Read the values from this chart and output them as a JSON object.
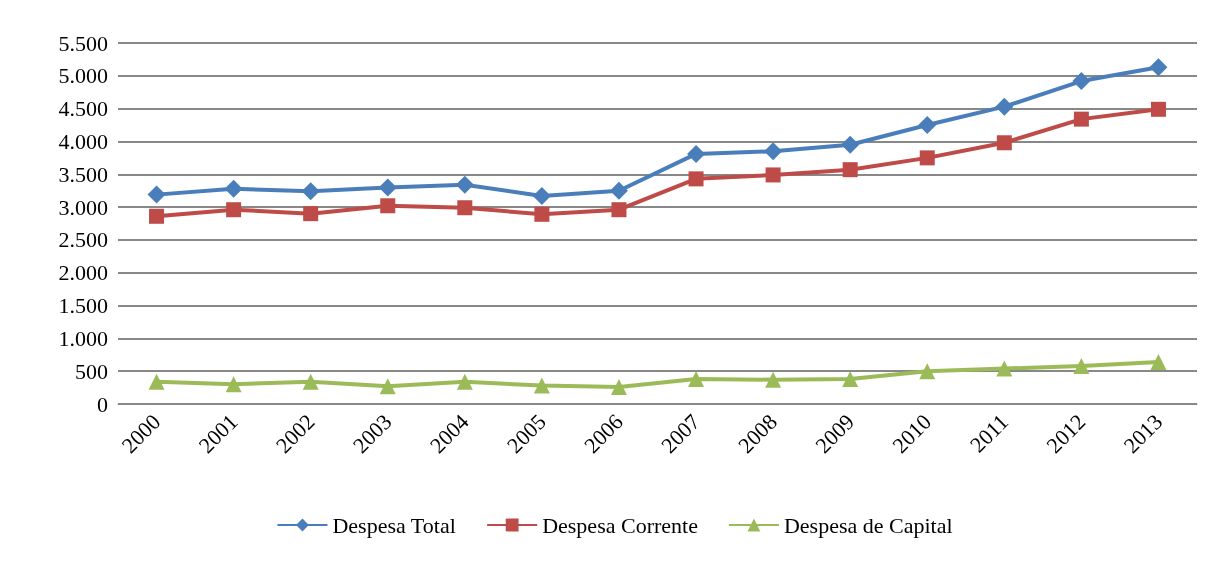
{
  "chart_data": {
    "type": "line",
    "categories": [
      "2000",
      "2001",
      "2002",
      "2003",
      "2004",
      "2005",
      "2006",
      "2007",
      "2008",
      "2009",
      "2010",
      "2011",
      "2012",
      "2013"
    ],
    "series": [
      {
        "name": "Despesa Total",
        "color": "#4a7ebb",
        "marker": "diamond",
        "values": [
          3190,
          3280,
          3240,
          3300,
          3340,
          3170,
          3250,
          3810,
          3850,
          3950,
          4250,
          4530,
          4920,
          5130
        ]
      },
      {
        "name": "Despesa Corrente",
        "color": "#be4b48",
        "marker": "square",
        "values": [
          2860,
          2960,
          2900,
          3020,
          2990,
          2890,
          2960,
          3430,
          3490,
          3570,
          3750,
          3980,
          4340,
          4490
        ]
      },
      {
        "name": "Despesa de Capital",
        "color": "#9bbb59",
        "marker": "triangle",
        "values": [
          340,
          300,
          340,
          270,
          340,
          280,
          260,
          380,
          370,
          380,
          500,
          540,
          580,
          640
        ]
      }
    ],
    "ylim": [
      0,
      5500
    ],
    "yticks": [
      {
        "value": 0,
        "label": "0"
      },
      {
        "value": 500,
        "label": "500"
      },
      {
        "value": 1000,
        "label": "1.000"
      },
      {
        "value": 1500,
        "label": "1.500"
      },
      {
        "value": 2000,
        "label": "2.000"
      },
      {
        "value": 2500,
        "label": "2.500"
      },
      {
        "value": 3000,
        "label": "3.000"
      },
      {
        "value": 3500,
        "label": "3.500"
      },
      {
        "value": 4000,
        "label": "4.000"
      },
      {
        "value": 4500,
        "label": "4.500"
      },
      {
        "value": 5000,
        "label": "5.000"
      },
      {
        "value": 5500,
        "label": "5.500"
      }
    ],
    "grid": "y",
    "legend": "bottom",
    "line_style": "solid"
  }
}
